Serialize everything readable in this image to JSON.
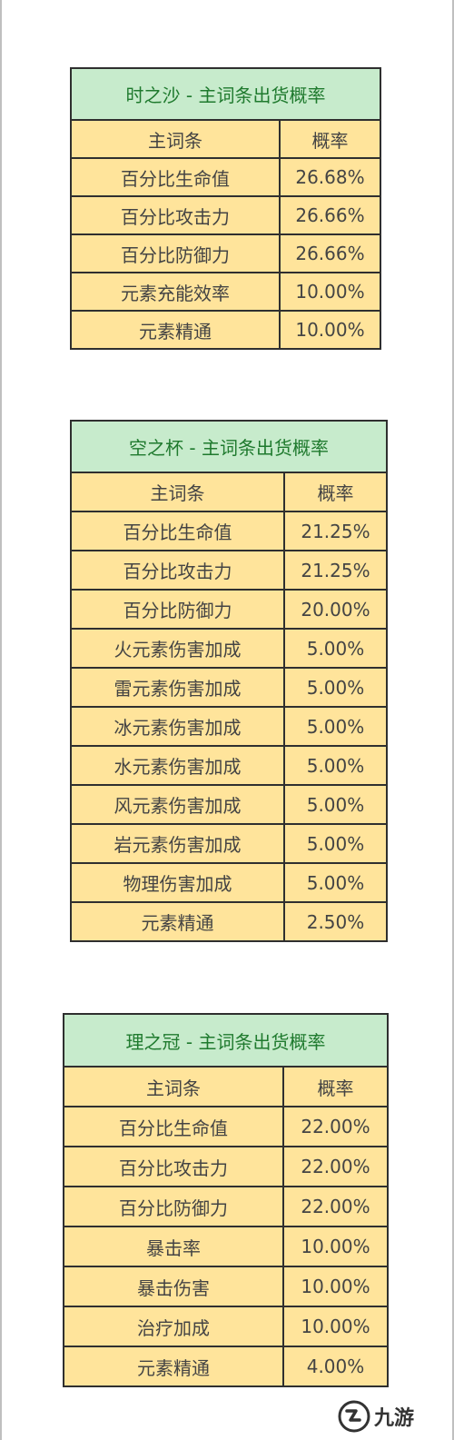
{
  "tables": [
    {
      "title": "时之沙 - 主词条出货概率",
      "header": {
        "stat": "主词条",
        "rate": "概率"
      },
      "rows": [
        {
          "stat": "百分比生命值",
          "rate": "26.68%"
        },
        {
          "stat": "百分比攻击力",
          "rate": "26.66%"
        },
        {
          "stat": "百分比防御力",
          "rate": "26.66%"
        },
        {
          "stat": "元素充能效率",
          "rate": "10.00%"
        },
        {
          "stat": "元素精通",
          "rate": "10.00%"
        }
      ]
    },
    {
      "title": "空之杯 - 主词条出货概率",
      "header": {
        "stat": "主词条",
        "rate": "概率"
      },
      "rows": [
        {
          "stat": "百分比生命值",
          "rate": "21.25%"
        },
        {
          "stat": "百分比攻击力",
          "rate": "21.25%"
        },
        {
          "stat": "百分比防御力",
          "rate": "20.00%"
        },
        {
          "stat": "火元素伤害加成",
          "rate": "5.00%"
        },
        {
          "stat": "雷元素伤害加成",
          "rate": "5.00%"
        },
        {
          "stat": "冰元素伤害加成",
          "rate": "5.00%"
        },
        {
          "stat": "水元素伤害加成",
          "rate": "5.00%"
        },
        {
          "stat": "风元素伤害加成",
          "rate": "5.00%"
        },
        {
          "stat": "岩元素伤害加成",
          "rate": "5.00%"
        },
        {
          "stat": "物理伤害加成",
          "rate": "5.00%"
        },
        {
          "stat": "元素精通",
          "rate": "2.50%"
        }
      ]
    },
    {
      "title": "理之冠 - 主词条出货概率",
      "header": {
        "stat": "主词条",
        "rate": "概率"
      },
      "rows": [
        {
          "stat": "百分比生命值",
          "rate": "22.00%"
        },
        {
          "stat": "百分比攻击力",
          "rate": "22.00%"
        },
        {
          "stat": "百分比防御力",
          "rate": "22.00%"
        },
        {
          "stat": "暴击率",
          "rate": "10.00%"
        },
        {
          "stat": "暴击伤害",
          "rate": "10.00%"
        },
        {
          "stat": "治疗加成",
          "rate": "10.00%"
        },
        {
          "stat": "元素精通",
          "rate": "4.00%"
        }
      ]
    }
  ],
  "watermark": {
    "text": "九游",
    "icon": "jiuyou-logo-icon"
  },
  "colors": {
    "title_bg": "#c7ebcc",
    "title_text": "#1f7a2e",
    "cell_bg": "#ffe49b",
    "border": "#2f2f2f"
  }
}
